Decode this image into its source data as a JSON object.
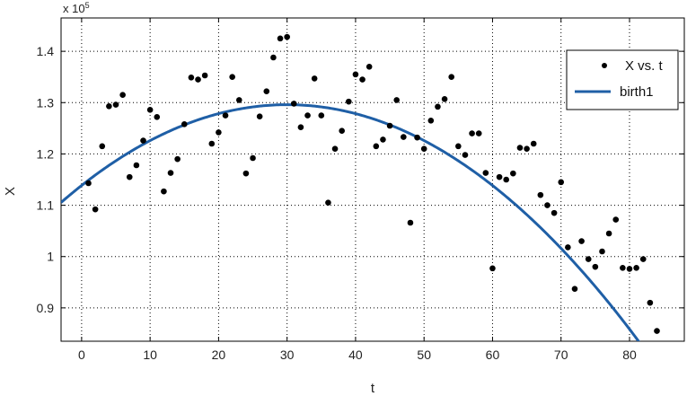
{
  "chart_data": {
    "type": "scatter",
    "xlabel": "t",
    "ylabel": "X",
    "exponent_base": "x 10",
    "exponent_power": "5",
    "xlim": [
      -3,
      88
    ],
    "ylim": [
      0.835,
      1.465
    ],
    "xticks": [
      0,
      10,
      20,
      30,
      40,
      50,
      60,
      70,
      80
    ],
    "yticks": [
      0.9,
      1.0,
      1.1,
      1.2,
      1.3,
      1.4
    ],
    "ytick_labels": [
      "0.9",
      "1",
      "1.1",
      "1.2",
      "1.3",
      "1.4"
    ],
    "grid": true,
    "legend_position": "top-right",
    "legend": [
      {
        "label": "X vs. t",
        "kind": "marker"
      },
      {
        "label": "birth1",
        "kind": "line"
      }
    ],
    "series": [
      {
        "name": "X vs. t",
        "kind": "scatter",
        "color": "#000000",
        "x": [
          1,
          2,
          3,
          4,
          5,
          6,
          7,
          8,
          9,
          10,
          11,
          12,
          13,
          14,
          15,
          16,
          17,
          18,
          19,
          20,
          21,
          22,
          23,
          24,
          25,
          26,
          27,
          28,
          29,
          30,
          31,
          32,
          33,
          34,
          35,
          36,
          37,
          38,
          39,
          40,
          41,
          42,
          43,
          44,
          45,
          46,
          47,
          48,
          49,
          50,
          51,
          52,
          53,
          54,
          55,
          56,
          57,
          58,
          59,
          60,
          61,
          62,
          63,
          64,
          65,
          66,
          67,
          68,
          69,
          70,
          71,
          72,
          73,
          74,
          75,
          76,
          77,
          78,
          79,
          80,
          81,
          82,
          83,
          84
        ],
        "y": [
          1.143,
          1.092,
          1.215,
          1.293,
          1.296,
          1.315,
          1.155,
          1.178,
          1.226,
          1.286,
          1.272,
          1.127,
          1.163,
          1.19,
          1.258,
          1.349,
          1.345,
          1.353,
          1.22,
          1.242,
          1.275,
          1.35,
          1.305,
          1.162,
          1.192,
          1.273,
          1.322,
          1.388,
          1.425,
          1.428,
          1.298,
          1.252,
          1.275,
          1.347,
          1.275,
          1.105,
          1.21,
          1.245,
          1.302,
          1.355,
          1.345,
          1.37,
          1.215,
          1.228,
          1.255,
          1.305,
          1.233,
          1.066,
          1.232,
          1.21,
          1.265,
          1.292,
          1.307,
          1.35,
          1.215,
          1.198,
          1.24,
          1.24,
          1.163,
          0.977,
          1.155,
          1.15,
          1.162,
          1.212,
          1.21,
          1.22,
          1.12,
          1.1,
          1.085,
          1.145,
          1.018,
          0.937,
          1.03,
          0.995,
          0.98,
          1.01,
          1.045,
          1.072,
          0.978,
          0.976,
          0.978,
          0.995,
          0.91,
          0.855
        ]
      },
      {
        "name": "birth1",
        "kind": "line",
        "color": "#1f5fa6",
        "model": "quadratic",
        "coefficients": {
          "a": -0.000175,
          "h": 30,
          "k": 1.296
        }
      }
    ]
  }
}
